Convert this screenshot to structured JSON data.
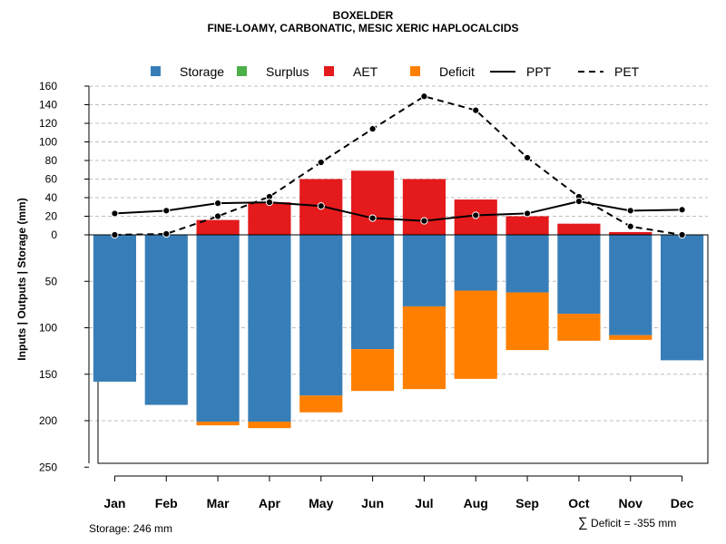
{
  "chart_data": {
    "type": "bar",
    "title": "BOXELDER",
    "subtitle": "FINE-LOAMY, CARBONATIC, MESIC XERIC HAPLOCALCIDS",
    "ylabel": "Inputs | Outputs | Storage    (mm)",
    "xlabel": "",
    "categories": [
      "Jan",
      "Feb",
      "Mar",
      "Apr",
      "May",
      "Jun",
      "Jul",
      "Aug",
      "Sep",
      "Oct",
      "Nov",
      "Dec"
    ],
    "upper_axis": {
      "ylim": [
        0,
        160
      ],
      "ticks": [
        "0",
        "20",
        "40",
        "60",
        "80",
        "100",
        "120",
        "140",
        "160"
      ]
    },
    "lower_axis": {
      "ylim": [
        0,
        250
      ],
      "ticks": [
        "0",
        "50",
        "100",
        "150",
        "200",
        "250"
      ]
    },
    "legend": {
      "position": "top",
      "items": [
        {
          "label": "Storage",
          "kind": "square",
          "color": "#377EB8"
        },
        {
          "label": "Surplus",
          "kind": "square",
          "color": "#4DAF4A"
        },
        {
          "label": "AET",
          "kind": "square",
          "color": "#E41A1C"
        },
        {
          "label": "Deficit",
          "kind": "square",
          "color": "#FF7F00"
        },
        {
          "label": "PPT",
          "kind": "solid-line",
          "color": "#000000"
        },
        {
          "label": "PET",
          "kind": "dashed-line",
          "color": "#000000"
        }
      ]
    },
    "series": [
      {
        "name": "AET",
        "color": "#E41A1C",
        "values": [
          0,
          0,
          16,
          35,
          60,
          69,
          60,
          38,
          20,
          12,
          3,
          0
        ]
      },
      {
        "name": "Storage",
        "color": "#377EB8",
        "values": [
          158,
          183,
          201,
          201,
          173,
          123,
          77,
          60,
          62,
          85,
          108,
          135
        ]
      },
      {
        "name": "Deficit",
        "color": "#FF7F00",
        "values": [
          0,
          0,
          4,
          7,
          18,
          45,
          89,
          95,
          62,
          29,
          5,
          0
        ]
      },
      {
        "name": "Surplus",
        "color": "#4DAF4A",
        "values": [
          0,
          0,
          0,
          0,
          0,
          0,
          0,
          0,
          0,
          0,
          0,
          0
        ]
      },
      {
        "name": "PPT",
        "color": "#000000",
        "values": [
          23,
          26,
          34,
          35,
          31,
          18,
          15,
          21,
          23,
          36,
          26,
          27
        ]
      },
      {
        "name": "PET",
        "color": "#000000",
        "values": [
          0,
          1,
          20,
          41,
          78,
          114,
          149,
          134,
          83,
          41,
          9,
          0
        ]
      }
    ]
  },
  "footer": {
    "storage_text": "Storage: 246 mm",
    "deficit_symbol": "∑",
    "deficit_text": "Deficit = -355 mm"
  }
}
